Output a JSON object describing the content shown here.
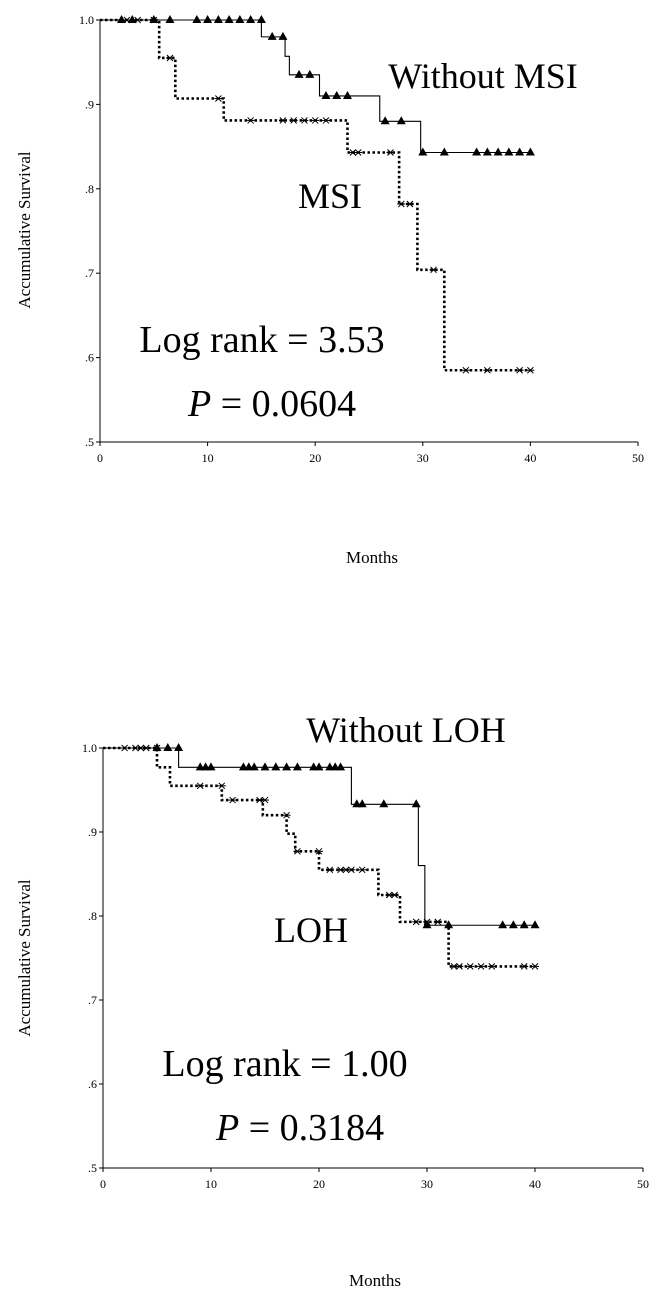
{
  "chart_data": [
    {
      "type": "line",
      "subtype": "kaplan-meier survival",
      "xlabel": "Months",
      "ylabel": "Accumulative Survival",
      "xlim": [
        0,
        50
      ],
      "ylim": [
        0.5,
        1.0
      ],
      "xticks": [
        "0",
        "10",
        "20",
        "30",
        "40",
        "50"
      ],
      "yticks": [
        ".5",
        ".6",
        ".7",
        ".8",
        ".9",
        "1.0"
      ],
      "grid": false,
      "annotations": {
        "stat": "Log rank = 3.53",
        "p_prefix": "P",
        "p_value": "= 0.0604"
      },
      "series": [
        {
          "name": "Without MSI",
          "marker": "triangle",
          "line_style": "solid",
          "steps": [
            [
              0,
              1.0
            ],
            [
              15,
              0.98
            ],
            [
              17.2,
              0.957
            ],
            [
              17.6,
              0.935
            ],
            [
              20.4,
              0.91
            ],
            [
              26,
              0.88
            ],
            [
              29.8,
              0.843
            ],
            [
              40,
              0.843
            ]
          ],
          "censored": [
            [
              2,
              1.0
            ],
            [
              3,
              1.0
            ],
            [
              5,
              1.0
            ],
            [
              6.5,
              1.0
            ],
            [
              9,
              1.0
            ],
            [
              10,
              1.0
            ],
            [
              11,
              1.0
            ],
            [
              12,
              1.0
            ],
            [
              13,
              1.0
            ],
            [
              14,
              1.0
            ],
            [
              15,
              1.0
            ],
            [
              16,
              0.98
            ],
            [
              17,
              0.98
            ],
            [
              18.5,
              0.935
            ],
            [
              19.5,
              0.935
            ],
            [
              21,
              0.91
            ],
            [
              22,
              0.91
            ],
            [
              23,
              0.91
            ],
            [
              26.5,
              0.88
            ],
            [
              28,
              0.88
            ],
            [
              30,
              0.843
            ],
            [
              32,
              0.843
            ],
            [
              35,
              0.843
            ],
            [
              36,
              0.843
            ],
            [
              37,
              0.843
            ],
            [
              38,
              0.843
            ],
            [
              39,
              0.843
            ],
            [
              40,
              0.843
            ]
          ]
        },
        {
          "name": "MSI",
          "marker": "asterisk",
          "line_style": "dotted",
          "steps": [
            [
              0,
              1.0
            ],
            [
              5.5,
              0.955
            ],
            [
              7,
              0.907
            ],
            [
              11.5,
              0.881
            ],
            [
              23,
              0.843
            ],
            [
              27.8,
              0.782
            ],
            [
              29.5,
              0.704
            ],
            [
              32,
              0.585
            ],
            [
              40,
              0.585
            ]
          ],
          "censored": [
            [
              2.5,
              1.0
            ],
            [
              3.5,
              1.0
            ],
            [
              5,
              1.0
            ],
            [
              6.5,
              0.955
            ],
            [
              11,
              0.907
            ],
            [
              14,
              0.881
            ],
            [
              17,
              0.881
            ],
            [
              18,
              0.881
            ],
            [
              19,
              0.881
            ],
            [
              20,
              0.881
            ],
            [
              21,
              0.881
            ],
            [
              23.5,
              0.843
            ],
            [
              24,
              0.843
            ],
            [
              27,
              0.843
            ],
            [
              28,
              0.782
            ],
            [
              28.8,
              0.782
            ],
            [
              31,
              0.704
            ],
            [
              34,
              0.585
            ],
            [
              36,
              0.585
            ],
            [
              39,
              0.585
            ],
            [
              40,
              0.585
            ]
          ]
        }
      ],
      "series_labels": [
        "Without MSI",
        "MSI"
      ]
    },
    {
      "type": "line",
      "subtype": "kaplan-meier survival",
      "xlabel": "Months",
      "ylabel": "Accumulative Survival",
      "xlim": [
        0,
        50
      ],
      "ylim": [
        0.5,
        1.0
      ],
      "xticks": [
        "0",
        "10",
        "20",
        "30",
        "40",
        "50"
      ],
      "yticks": [
        ".5",
        ".6",
        ".7",
        ".8",
        ".9",
        "1.0"
      ],
      "grid": false,
      "annotations": {
        "stat": "Log rank = 1.00",
        "p_prefix": "P",
        "p_value": "= 0.3184"
      },
      "series": [
        {
          "name": "Without LOH",
          "marker": "triangle",
          "line_style": "solid",
          "steps": [
            [
              0,
              1.0
            ],
            [
              7,
              0.977
            ],
            [
              23,
              0.933
            ],
            [
              29.2,
              0.86
            ],
            [
              29.8,
              0.789
            ],
            [
              40,
              0.789
            ]
          ],
          "censored": [
            [
              5,
              1.0
            ],
            [
              6,
              1.0
            ],
            [
              7,
              1.0
            ],
            [
              9,
              0.977
            ],
            [
              9.5,
              0.977
            ],
            [
              10,
              0.977
            ],
            [
              13,
              0.977
            ],
            [
              13.5,
              0.977
            ],
            [
              14,
              0.977
            ],
            [
              15,
              0.977
            ],
            [
              16,
              0.977
            ],
            [
              17,
              0.977
            ],
            [
              18,
              0.977
            ],
            [
              19.5,
              0.977
            ],
            [
              20,
              0.977
            ],
            [
              21,
              0.977
            ],
            [
              21.5,
              0.977
            ],
            [
              22,
              0.977
            ],
            [
              23.5,
              0.933
            ],
            [
              24,
              0.933
            ],
            [
              26,
              0.933
            ],
            [
              29,
              0.933
            ],
            [
              30,
              0.789
            ],
            [
              32,
              0.789
            ],
            [
              37,
              0.789
            ],
            [
              38,
              0.789
            ],
            [
              39,
              0.789
            ],
            [
              40,
              0.789
            ]
          ]
        },
        {
          "name": "LOH",
          "marker": "asterisk",
          "line_style": "dotted",
          "steps": [
            [
              0,
              1.0
            ],
            [
              5,
              0.977
            ],
            [
              6.2,
              0.955
            ],
            [
              11,
              0.938
            ],
            [
              14.8,
              0.92
            ],
            [
              17,
              0.898
            ],
            [
              17.8,
              0.877
            ],
            [
              20,
              0.855
            ],
            [
              25.5,
              0.825
            ],
            [
              27.5,
              0.793
            ],
            [
              32,
              0.74
            ],
            [
              40,
              0.74
            ]
          ],
          "censored": [
            [
              2,
              1.0
            ],
            [
              3,
              1.0
            ],
            [
              3.5,
              1.0
            ],
            [
              4,
              1.0
            ],
            [
              5,
              1.0
            ],
            [
              9,
              0.955
            ],
            [
              11,
              0.955
            ],
            [
              12,
              0.938
            ],
            [
              14.5,
              0.938
            ],
            [
              15,
              0.938
            ],
            [
              17,
              0.92
            ],
            [
              18,
              0.877
            ],
            [
              20,
              0.877
            ],
            [
              21,
              0.855
            ],
            [
              22,
              0.855
            ],
            [
              22.5,
              0.855
            ],
            [
              23,
              0.855
            ],
            [
              24,
              0.855
            ],
            [
              26.5,
              0.825
            ],
            [
              27,
              0.825
            ],
            [
              29,
              0.793
            ],
            [
              30,
              0.793
            ],
            [
              31,
              0.793
            ],
            [
              32.5,
              0.74
            ],
            [
              33,
              0.74
            ],
            [
              34,
              0.74
            ],
            [
              35,
              0.74
            ],
            [
              36,
              0.74
            ],
            [
              39,
              0.74
            ],
            [
              40,
              0.74
            ]
          ]
        }
      ],
      "series_labels": [
        "Without LOH",
        "LOH"
      ]
    }
  ]
}
